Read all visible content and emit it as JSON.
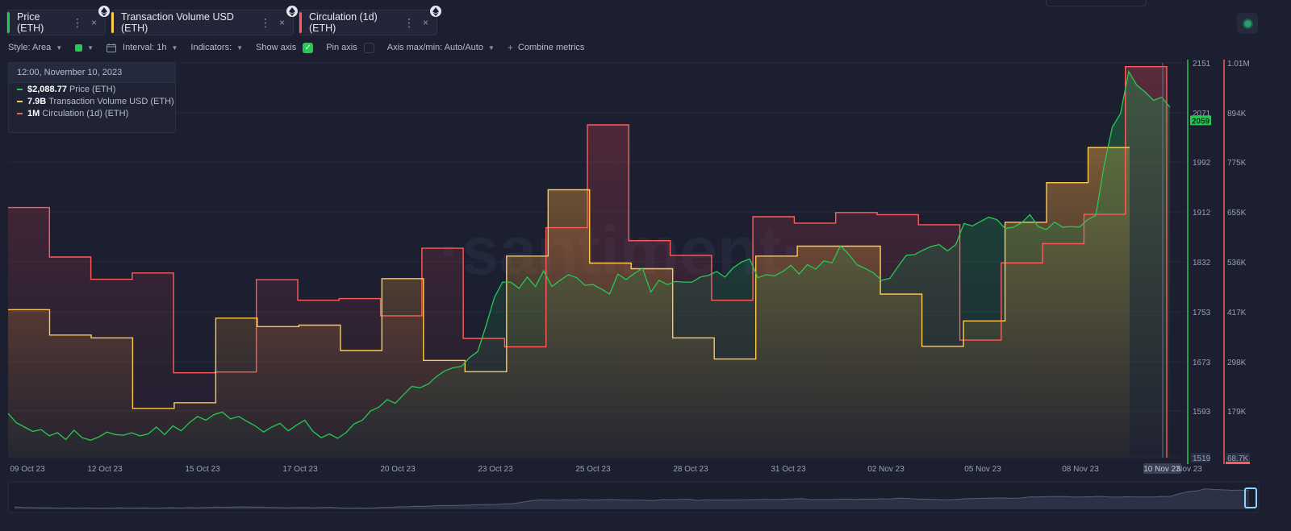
{
  "tabs": [
    {
      "label": "Price (ETH)",
      "color": "#26c953"
    },
    {
      "label": "Transaction Volume USD (ETH)",
      "color": "#ffc84a"
    },
    {
      "label": "Circulation (1d) (ETH)",
      "color": "#ff5b5b"
    }
  ],
  "tab_controls": {
    "more": "⋮",
    "close": "×"
  },
  "toolbar": {
    "style": "Style: Area",
    "interval": "Interval: 1h",
    "indicators": "Indicators:",
    "show_axis": "Show axis",
    "pin_axis": "Pin axis",
    "axis_maxmin": "Axis max/min: Auto/Auto",
    "combine": "Combine metrics",
    "plus": "+",
    "show_axis_checked": true,
    "pin_axis_checked": false
  },
  "tooltip": {
    "date": "12:00, November 10, 2023",
    "rows": [
      {
        "value": "$2,088.77",
        "label": "Price (ETH)",
        "color": "#26c953"
      },
      {
        "value": "7.9B",
        "label": "Transaction Volume USD (ETH)",
        "color": "#ffc84a"
      },
      {
        "value": "1M",
        "label": "Circulation (1d) (ETH)",
        "color": "#ff5b5b"
      }
    ]
  },
  "watermark": "·santiment·",
  "chart_data": {
    "type": "area",
    "x_ticks": [
      "09 Oct 23",
      "12 Oct 23",
      "15 Oct 23",
      "17 Oct 23",
      "20 Oct 23",
      "23 Oct 23",
      "25 Oct 23",
      "28 Oct 23",
      "31 Oct 23",
      "02 Nov 23",
      "05 Nov 23",
      "08 Nov 23",
      "10 Nov 23",
      "Nov 23"
    ],
    "x_highlight": "10 Nov 23",
    "price_axis": {
      "ticks": [
        2151,
        2071,
        1992,
        1912,
        1832,
        1753,
        1673,
        1593,
        1519
      ],
      "ylim": [
        1519,
        2151
      ],
      "current": "2059",
      "color": "#26c953"
    },
    "right_axis": {
      "ticks": [
        "1.01M",
        "894K",
        "775K",
        "655K",
        "536K",
        "417K",
        "298K",
        "179K",
        "68.7K"
      ],
      "ylim": [
        68700,
        1010000
      ],
      "color": "#ff5b5b"
    },
    "series": [
      {
        "name": "Price (ETH)",
        "color": "#26c953",
        "shape": "line",
        "values": [
          1590,
          1575,
          1568,
          1561,
          1564,
          1554,
          1559,
          1548,
          1563,
          1551,
          1547,
          1552,
          1560,
          1556,
          1555,
          1559,
          1554,
          1557,
          1568,
          1556,
          1570,
          1562,
          1575,
          1585,
          1579,
          1588,
          1592,
          1581,
          1585,
          1577,
          1570,
          1560,
          1568,
          1574,
          1562,
          1571,
          1579,
          1561,
          1551,
          1557,
          1550,
          1559,
          1573,
          1579,
          1594,
          1600,
          1612,
          1606,
          1620,
          1633,
          1631,
          1637,
          1649,
          1658,
          1663,
          1665,
          1679,
          1689,
          1730,
          1775,
          1800,
          1800,
          1790,
          1808,
          1793,
          1818,
          1793,
          1803,
          1812,
          1807,
          1795,
          1796,
          1789,
          1781,
          1813,
          1804,
          1814,
          1822,
          1784,
          1803,
          1796,
          1801,
          1800,
          1800,
          1808,
          1811,
          1817,
          1808,
          1823,
          1832,
          1837,
          1807,
          1812,
          1810,
          1817,
          1827,
          1813,
          1828,
          1821,
          1834,
          1831,
          1858,
          1845,
          1828,
          1822,
          1815,
          1803,
          1806,
          1825,
          1843,
          1844,
          1851,
          1857,
          1860,
          1850,
          1860,
          1894,
          1890,
          1897,
          1904,
          1900,
          1886,
          1888,
          1895,
          1908,
          1889,
          1884,
          1896,
          1888,
          1889,
          1888,
          1900,
          1907,
          1986,
          2048,
          2070,
          2137,
          2115,
          2104,
          2091,
          2096,
          2080
        ]
      },
      {
        "name": "Transaction Volume USD (ETH)",
        "color": "#ffc84a",
        "shape": "step",
        "values": [
          1.05,
          0.87,
          0.85,
          0.35,
          0.39,
          0.99,
          0.93,
          0.94,
          0.76,
          1.27,
          0.69,
          0.61,
          1.43,
          1.9,
          1.38,
          1.34,
          0.85,
          0.7,
          1.43,
          1.5,
          1.5,
          1.16,
          0.79,
          0.97,
          1.67,
          1.95,
          2.2
        ],
        "unit": "B (estimated)"
      },
      {
        "name": "Circulation (1d) (ETH)",
        "color": "#ff5b5b",
        "shape": "step",
        "values": [
          665000,
          547000,
          494000,
          509000,
          271000,
          273000,
          493000,
          444000,
          448000,
          407000,
          568000,
          353000,
          333000,
          617000,
          862000,
          586000,
          551000,
          444000,
          643000,
          628000,
          653000,
          648000,
          624000,
          349000,
          533000,
          579000,
          649000,
          1001000
        ],
        "unit": "ETH (estimated)"
      }
    ],
    "grid": true,
    "legend": "top-left"
  }
}
